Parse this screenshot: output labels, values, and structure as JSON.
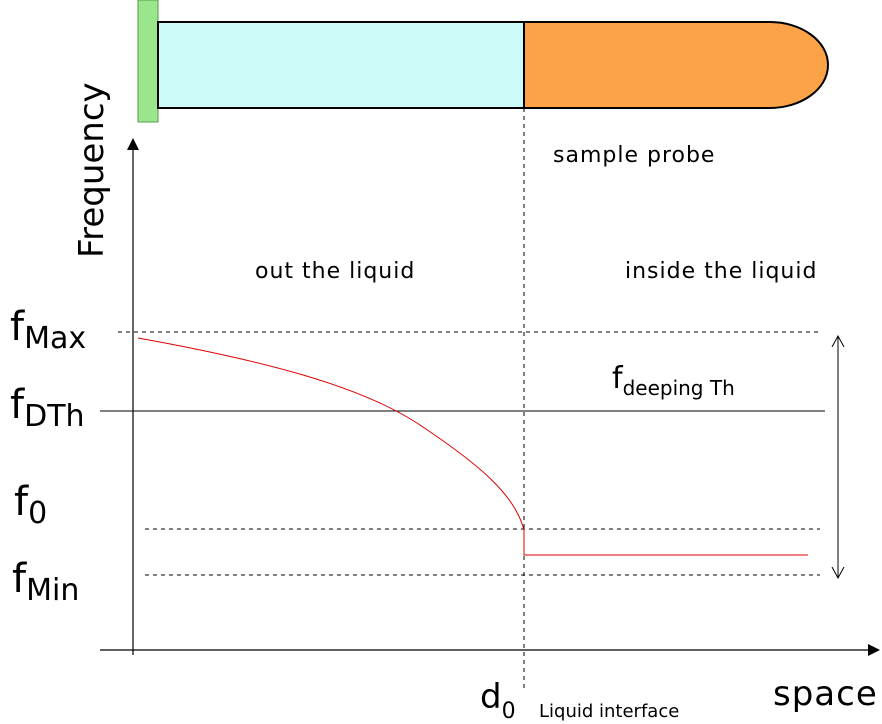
{
  "probe_label": "sample probe",
  "y_axis_label": "Frequency",
  "x_axis_label": "space",
  "regions": {
    "outside": "out the liquid",
    "inside": "inside the liquid"
  },
  "levels": {
    "f_max": {
      "base": "f",
      "sub": "Max"
    },
    "f_dth": {
      "base": "f",
      "sub": "DTh"
    },
    "f_0": {
      "base": "f",
      "sub": "0"
    },
    "f_min": {
      "base": "f",
      "sub": "Min"
    },
    "f_deeping": {
      "base": "f",
      "sub": "deeping Th"
    }
  },
  "interface": {
    "symbol": {
      "base": "d",
      "sub": "0"
    },
    "label": "Liquid interface"
  }
}
